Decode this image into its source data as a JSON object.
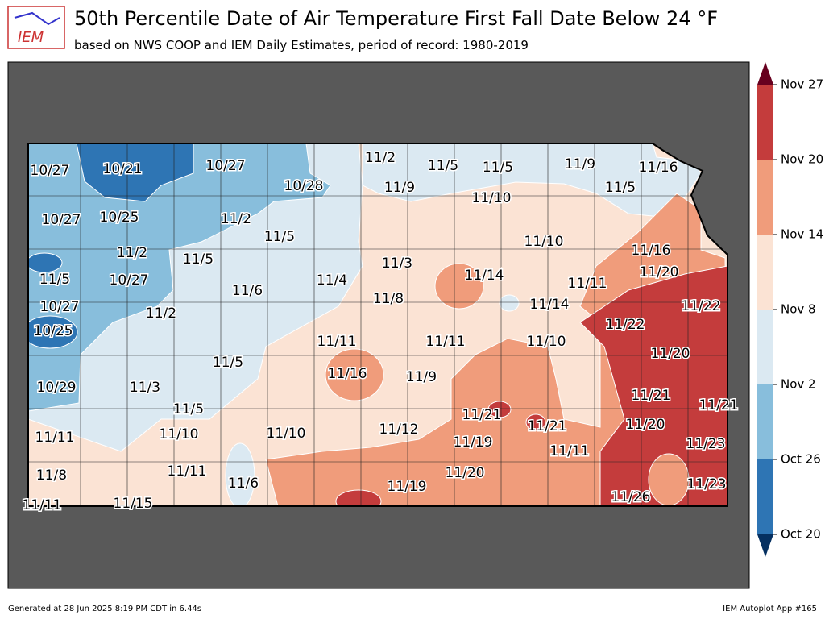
{
  "header": {
    "logo": "IEM",
    "title": "50th Percentile Date of Air Temperature First Fall Date Below 24 °F",
    "subtitle": "based on NWS COOP and IEM Daily Estimates, period of record: 1980-2019"
  },
  "colorbar": {
    "ticks": [
      "Oct 20",
      "Oct 26",
      "Nov 2",
      "Nov 8",
      "Nov 14",
      "Nov 20",
      "Nov 27"
    ],
    "colors": [
      "#2e75b4",
      "#88bedc",
      "#dbe9f2",
      "#fbe3d4",
      "#f09c7b",
      "#c43c3c"
    ],
    "under": "#053061",
    "over": "#67001f"
  },
  "labels": [
    "10/27",
    "10/21",
    "10/27",
    "10/28",
    "11/2",
    "11/5",
    "11/5",
    "11/9",
    "11/16",
    "10/27",
    "10/25",
    "11/2",
    "11/9",
    "11/10",
    "11/5",
    "11/5",
    "11/10",
    "11/16",
    "11/2",
    "11/5",
    "11/3",
    "11/20",
    "11/5",
    "10/27",
    "11/4",
    "11/14",
    "11/11",
    "11/6",
    "11/8",
    "11/14",
    "11/22",
    "10/27",
    "11/2",
    "11/22",
    "10/25",
    "11/11",
    "11/11",
    "11/10",
    "11/20",
    "11/5",
    "11/16",
    "11/9",
    "10/29",
    "11/3",
    "11/21",
    "11/21",
    "11/5",
    "11/21",
    "11/21",
    "11/12",
    "11/20",
    "11/11",
    "11/10",
    "11/10",
    "11/19",
    "11/11",
    "11/23",
    "11/11",
    "11/8",
    "11/20",
    "11/6",
    "11/19",
    "11/23",
    "11/26",
    "11/11",
    "11/15"
  ],
  "footer": {
    "left": "Generated at 28 Jun 2025 8:19 PM CDT in 6.44s",
    "right": "IEM Autoplot App #165"
  }
}
